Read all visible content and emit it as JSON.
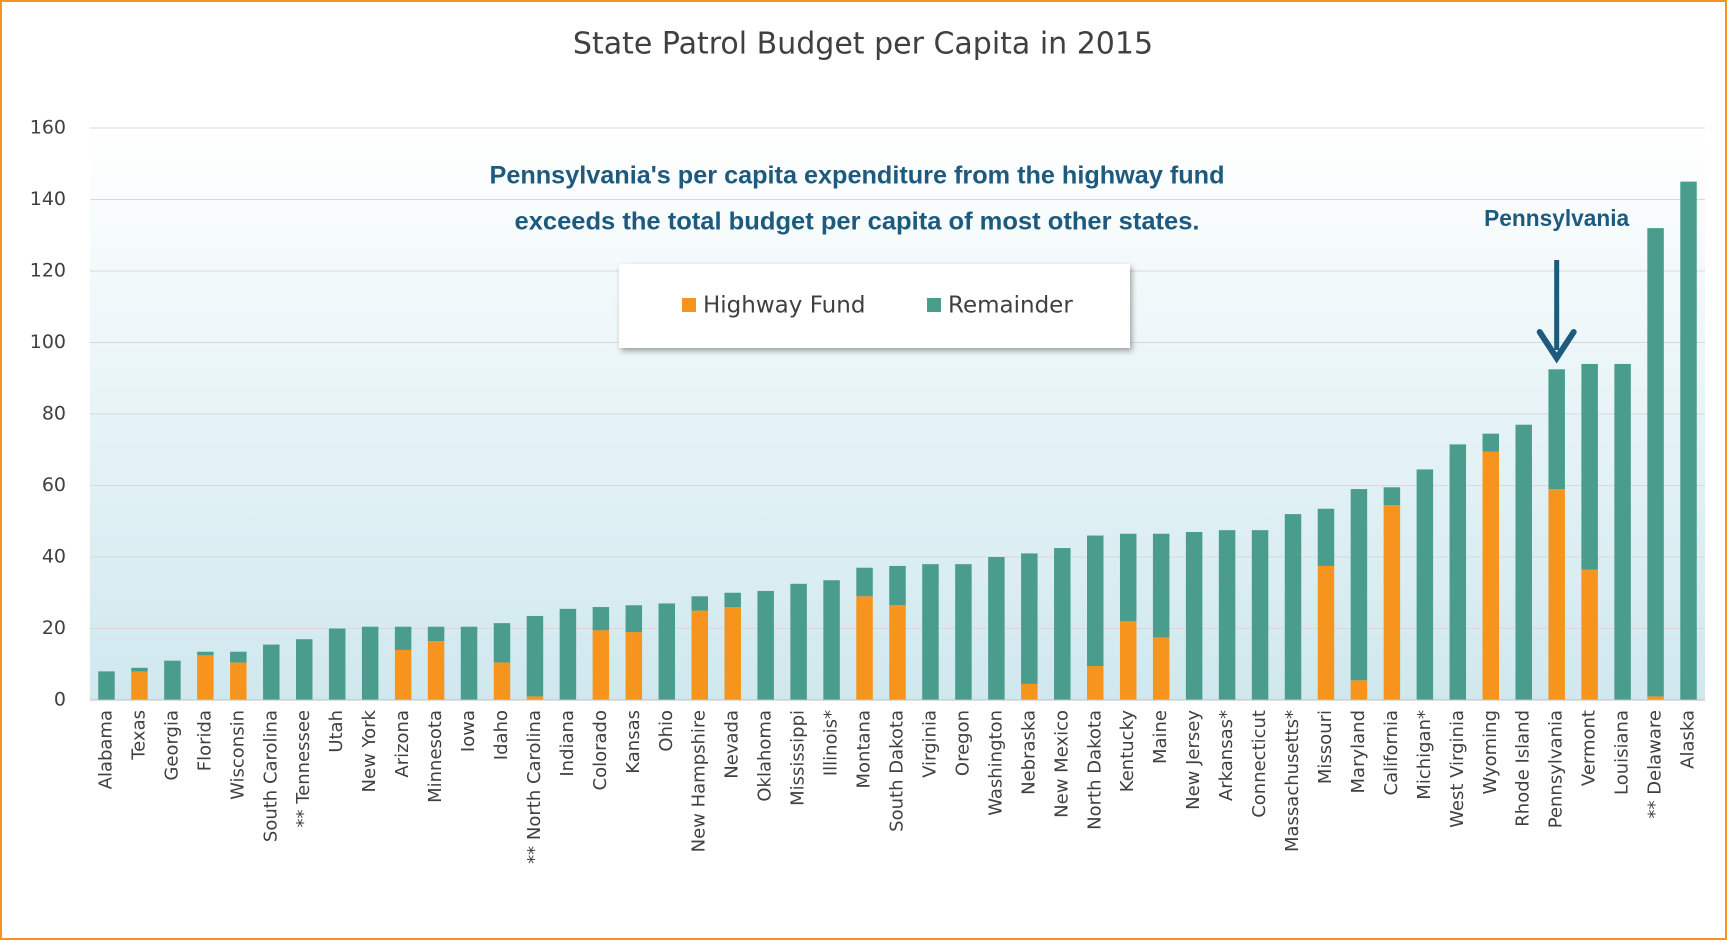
{
  "chart_data": {
    "type": "stacked_bar",
    "title": "State Patrol Budget per Capita in 2015",
    "annotations": [
      {
        "text": "Pennsylvania's per capita expenditure from the highway fund"
      },
      {
        "text": "exceeds the total budget per capita of most other states."
      },
      {
        "text": "Pennsylvania"
      }
    ],
    "categories": [
      "Alabama",
      "Texas",
      "Georgia",
      "Florida",
      "Wisconsin",
      "South Carolina",
      "** Tennessee",
      "Utah",
      "New York",
      "Arizona",
      "Minnesota",
      "Iowa",
      "Idaho",
      "** North Carolina",
      "Indiana",
      "Colorado",
      "Kansas",
      "Ohio",
      "New Hampshire",
      "Nevada",
      "Oklahoma",
      "Mississippi",
      "Illinois*",
      "Montana",
      "South Dakota",
      "Virginia",
      "Oregon",
      "Washington",
      "Nebraska",
      "New Mexico",
      "North Dakota",
      "Kentucky",
      "Maine",
      "New Jersey",
      "Arkansas*",
      "Connecticut",
      "Massachusetts*",
      "Missouri",
      "Maryland",
      "California",
      "Michigan*",
      "West Virginia",
      "Wyoming",
      "Rhode Island",
      "Pennsylvania",
      "Vermont",
      "Louisiana",
      "** Delaware",
      "Alaska"
    ],
    "series": [
      {
        "name": "Highway Fund",
        "color": "#f7941d",
        "values": [
          0,
          8,
          0,
          12.5,
          10.5,
          0,
          0,
          0,
          0,
          14,
          16.5,
          0,
          10.5,
          1,
          0,
          19.5,
          19,
          0,
          25,
          26,
          0,
          0,
          0,
          29,
          26.5,
          0,
          0,
          0,
          4.5,
          0,
          9.5,
          22,
          17.5,
          0,
          0,
          0,
          0,
          37.5,
          5.5,
          54.5,
          0,
          0,
          69.5,
          0,
          59,
          36.5,
          0,
          1,
          0
        ]
      },
      {
        "name": "Remainder",
        "color": "#4a9c8c",
        "values": [
          8,
          1,
          11,
          1,
          3,
          15.5,
          17,
          20,
          20.5,
          6.5,
          4,
          20.5,
          11,
          22.5,
          25.5,
          6.5,
          7.5,
          27,
          4,
          4,
          30.5,
          32.5,
          33.5,
          8,
          11,
          38,
          38,
          40,
          36.5,
          42.5,
          36.5,
          24.5,
          29,
          47,
          47.5,
          47.5,
          52,
          16,
          53.5,
          5,
          64.5,
          71.5,
          5,
          77,
          33.5,
          57.5,
          94,
          131,
          145
        ]
      }
    ],
    "ylim": [
      0,
      160
    ],
    "yticks": [
      0,
      20,
      40,
      60,
      80,
      100,
      120,
      140,
      160
    ],
    "grid": true
  }
}
